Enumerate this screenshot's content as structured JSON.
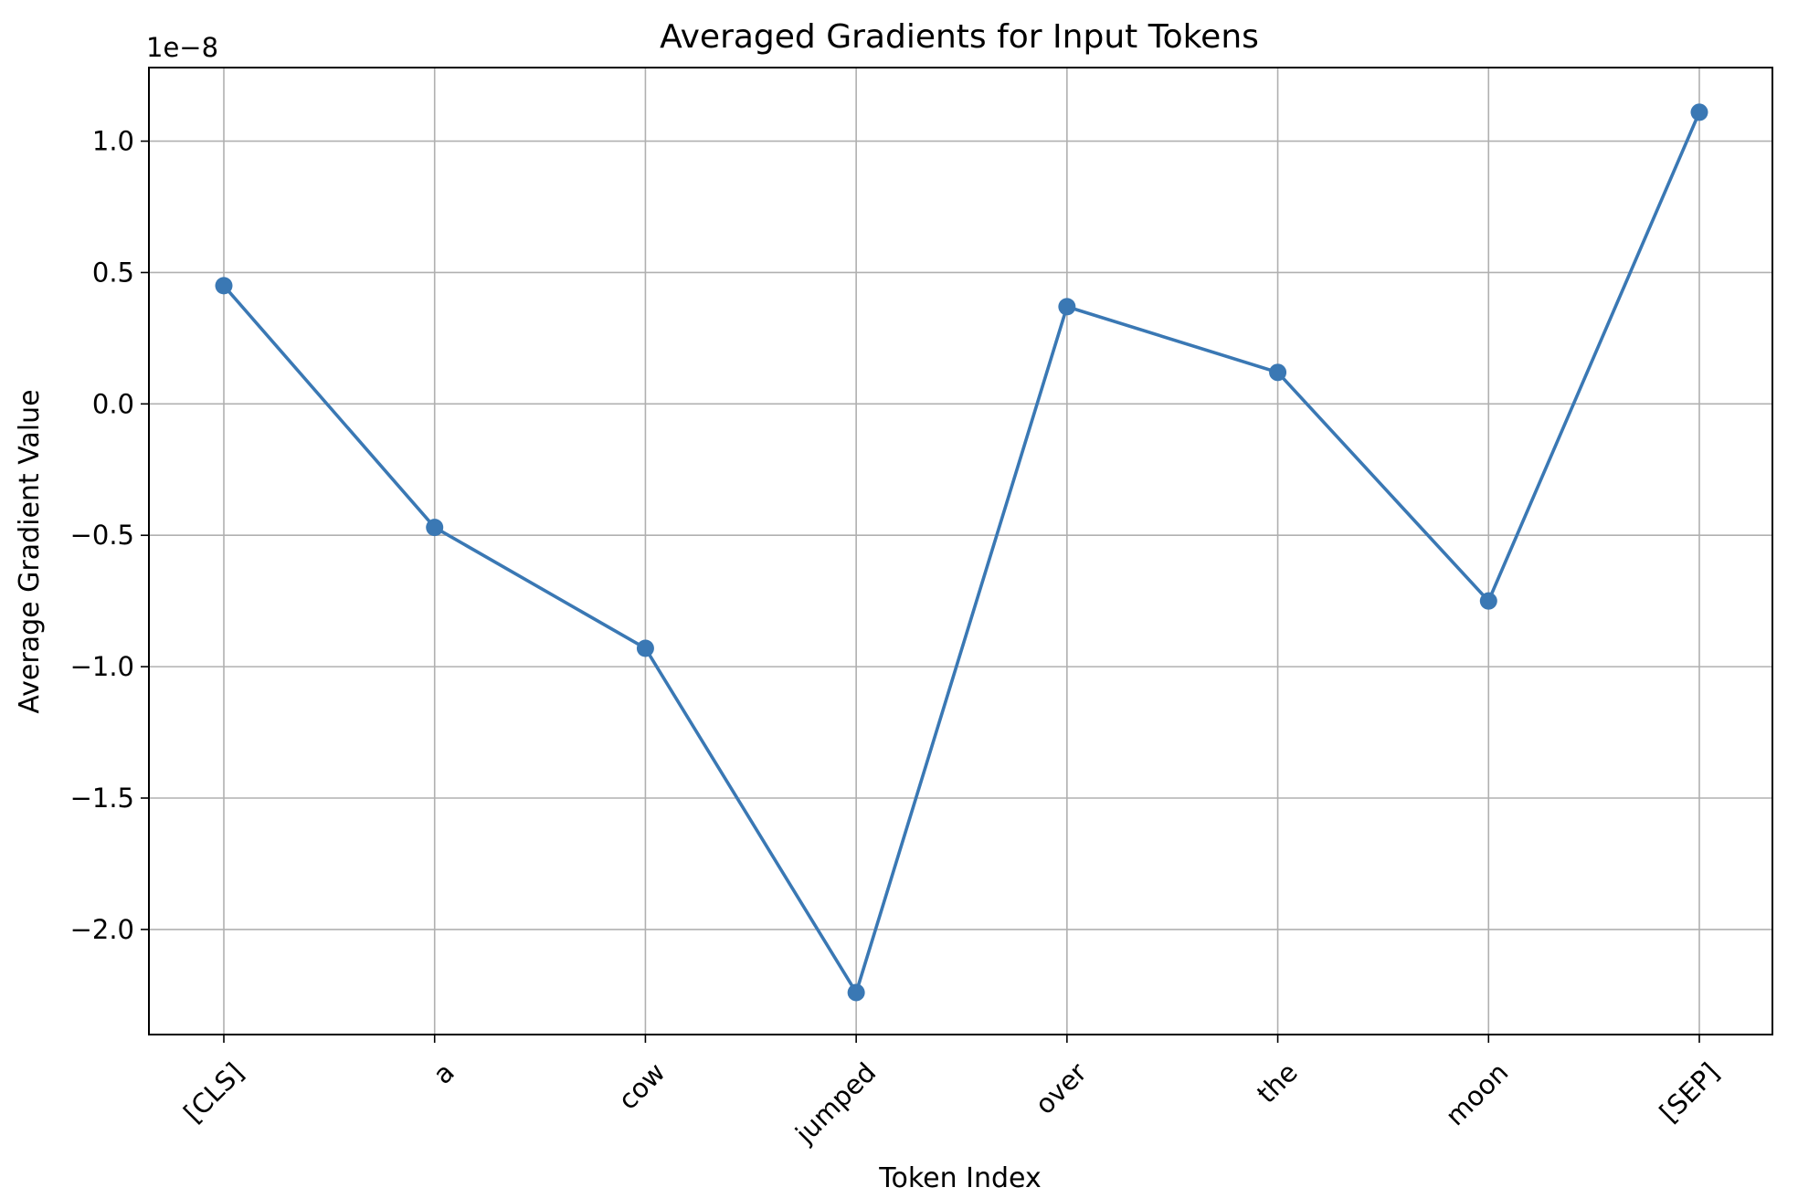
{
  "chart_data": {
    "type": "line",
    "title": "Averaged Gradients for Input Tokens",
    "xlabel": "Token Index",
    "ylabel": "Average Gradient Value",
    "y_offset_label": "1e−8",
    "categories": [
      "[CLS]",
      "a",
      "cow",
      "jumped",
      "over",
      "the",
      "moon",
      "[SEP]"
    ],
    "series": [
      {
        "values": [
          0.45,
          -0.47,
          -0.93,
          -2.24,
          0.37,
          0.12,
          -0.75,
          1.11
        ],
        "color": "#3a78b4",
        "marker": "circle"
      }
    ],
    "ylim": [
      -2.4,
      1.28
    ],
    "yticks": [
      -2.0,
      -1.5,
      -1.0,
      -0.5,
      0.0,
      0.5,
      1.0
    ],
    "ytick_labels": [
      "−2.0",
      "−1.5",
      "−1.0",
      "−0.5",
      "0.0",
      "0.5",
      "1.0"
    ],
    "grid": true,
    "legend": "none"
  }
}
